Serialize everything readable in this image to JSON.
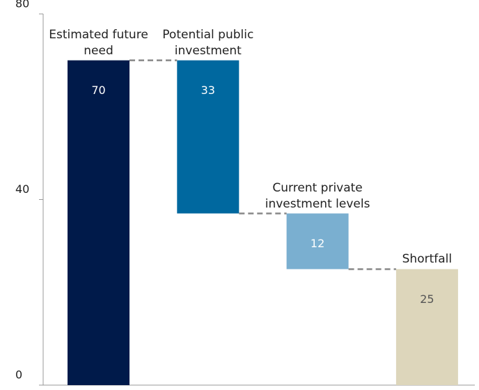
{
  "chart_data": {
    "type": "waterfall",
    "categories": [
      "Estimated future need",
      "Potential public investment",
      "Current private investment levels",
      "Shortfall"
    ],
    "values": [
      70,
      33,
      12,
      25
    ],
    "measure": [
      "total",
      "decrease",
      "decrease",
      "total"
    ],
    "colors": [
      "#001a4a",
      "#00689f",
      "#7aafd0",
      "#ddd6bb"
    ],
    "value_label_colors": [
      "#ffffff",
      "#ffffff",
      "#ffffff",
      "#555555"
    ],
    "connector_color": "#888888",
    "ylim": [
      0,
      80
    ],
    "yticks": [
      0,
      40,
      80
    ]
  }
}
